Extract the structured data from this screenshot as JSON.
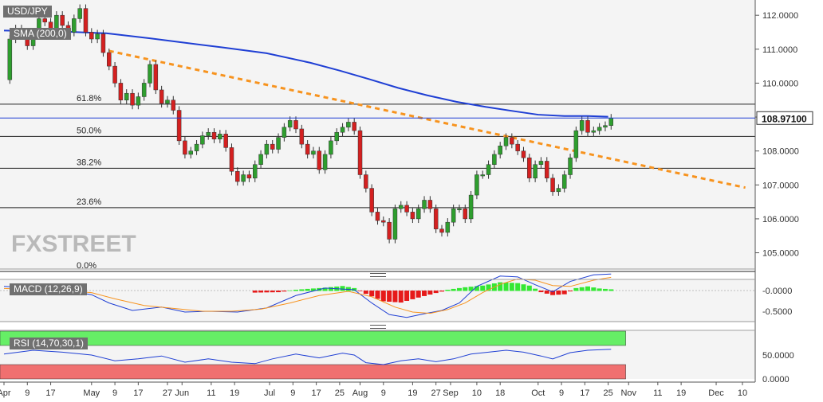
{
  "chart_data": {
    "type": "candlestick",
    "symbol": "USD/JPY",
    "indicators": {
      "sma_label": "SMA (200,0)",
      "macd_label": "MACD (12,26,9)",
      "rsi_label": "RSI (14,70,30,1)"
    },
    "current_price": "108.97100",
    "price_axis": {
      "ticks": [
        "112.0000",
        "111.0000",
        "110.0000",
        "109.0000",
        "108.0000",
        "107.0000",
        "106.0000",
        "105.0000"
      ],
      "tick_values": [
        112,
        111,
        110,
        109,
        108,
        107,
        106,
        105
      ],
      "ylim": [
        104.52,
        112.45
      ]
    },
    "macd_axis": {
      "ticks": [
        "-0.0000",
        "-0.5000"
      ],
      "tick_values": [
        0,
        -0.5
      ]
    },
    "rsi_axis": {
      "ticks": [
        "50.0000",
        "0.0000"
      ],
      "tick_values": [
        50,
        0
      ],
      "overbought": 70,
      "oversold": 30
    },
    "x_axis": {
      "labels": [
        {
          "t": "Apr",
          "d": 0
        },
        {
          "t": "9",
          "d": 8
        },
        {
          "t": "17",
          "d": 16
        },
        {
          "t": "May",
          "d": 30
        },
        {
          "t": "9",
          "d": 38
        },
        {
          "t": "17",
          "d": 46
        },
        {
          "t": "27",
          "d": 56
        },
        {
          "t": "Jun",
          "d": 61
        },
        {
          "t": "11",
          "d": 71
        },
        {
          "t": "19",
          "d": 79
        },
        {
          "t": "Jul",
          "d": 91
        },
        {
          "t": "9",
          "d": 99
        },
        {
          "t": "17",
          "d": 107
        },
        {
          "t": "25",
          "d": 115
        },
        {
          "t": "Aug",
          "d": 122
        },
        {
          "t": "9",
          "d": 130
        },
        {
          "t": "19",
          "d": 140
        },
        {
          "t": "27",
          "d": 148
        },
        {
          "t": "Sep",
          "d": 153
        },
        {
          "t": "10",
          "d": 162
        },
        {
          "t": "18",
          "d": 170
        },
        {
          "t": "Oct",
          "d": 183
        },
        {
          "t": "9",
          "d": 191
        },
        {
          "t": "17",
          "d": 199
        },
        {
          "t": "25",
          "d": 207
        },
        {
          "t": "Nov",
          "d": 214
        },
        {
          "t": "11",
          "d": 224
        },
        {
          "t": "19",
          "d": 232
        },
        {
          "t": "Dec",
          "d": 244
        },
        {
          "t": "10",
          "d": 253
        }
      ]
    },
    "fibonacci": [
      {
        "label": "61.8%",
        "value": 109.38
      },
      {
        "label": "50.0%",
        "value": 108.43
      },
      {
        "label": "38.2%",
        "value": 107.49
      },
      {
        "label": "23.6%",
        "value": 106.33
      },
      {
        "label": "0.0%",
        "value": 104.45
      }
    ],
    "trendline": {
      "start": {
        "d": 36,
        "value": 110.95
      },
      "end": {
        "d": 254,
        "value": 106.92
      }
    },
    "sma200": [
      [
        0,
        111.55
      ],
      [
        20,
        111.52
      ],
      [
        35,
        111.47
      ],
      [
        50,
        111.32
      ],
      [
        61,
        111.2
      ],
      [
        75,
        111.05
      ],
      [
        90,
        110.88
      ],
      [
        105,
        110.6
      ],
      [
        115,
        110.37
      ],
      [
        125,
        110.12
      ],
      [
        135,
        109.86
      ],
      [
        145,
        109.64
      ],
      [
        155,
        109.45
      ],
      [
        165,
        109.3
      ],
      [
        175,
        109.17
      ],
      [
        183,
        109.07
      ],
      [
        192,
        109.03
      ],
      [
        200,
        109.03
      ],
      [
        207,
        109.01
      ]
    ],
    "closes": [
      [
        0,
        110.1
      ],
      [
        2,
        111.3
      ],
      [
        4,
        111.6
      ],
      [
        6,
        111.4
      ],
      [
        8,
        111.1
      ],
      [
        10,
        111.5
      ],
      [
        12,
        111.9
      ],
      [
        14,
        111.8
      ],
      [
        16,
        111.6
      ],
      [
        18,
        112.0
      ],
      [
        20,
        111.7
      ],
      [
        22,
        111.5
      ],
      [
        24,
        111.9
      ],
      [
        26,
        112.2
      ],
      [
        28,
        111.5
      ],
      [
        30,
        111.3
      ],
      [
        32,
        111.45
      ],
      [
        34,
        110.9
      ],
      [
        36,
        110.5
      ],
      [
        38,
        110.0
      ],
      [
        40,
        109.5
      ],
      [
        42,
        109.7
      ],
      [
        44,
        109.35
      ],
      [
        46,
        109.6
      ],
      [
        48,
        110.0
      ],
      [
        50,
        110.55
      ],
      [
        52,
        109.8
      ],
      [
        54,
        109.4
      ],
      [
        56,
        109.5
      ],
      [
        58,
        109.2
      ],
      [
        60,
        108.3
      ],
      [
        62,
        107.9
      ],
      [
        64,
        108.0
      ],
      [
        66,
        108.2
      ],
      [
        68,
        108.45
      ],
      [
        70,
        108.55
      ],
      [
        72,
        108.35
      ],
      [
        74,
        108.5
      ],
      [
        76,
        108.1
      ],
      [
        78,
        107.4
      ],
      [
        80,
        107.1
      ],
      [
        82,
        107.3
      ],
      [
        84,
        107.2
      ],
      [
        86,
        107.6
      ],
      [
        88,
        107.9
      ],
      [
        90,
        108.2
      ],
      [
        92,
        108.05
      ],
      [
        94,
        108.4
      ],
      [
        96,
        108.7
      ],
      [
        98,
        108.9
      ],
      [
        100,
        108.65
      ],
      [
        102,
        108.2
      ],
      [
        104,
        107.9
      ],
      [
        106,
        108.0
      ],
      [
        108,
        107.45
      ],
      [
        110,
        107.9
      ],
      [
        112,
        108.3
      ],
      [
        114,
        108.55
      ],
      [
        116,
        108.7
      ],
      [
        118,
        108.85
      ],
      [
        120,
        108.6
      ],
      [
        122,
        107.3
      ],
      [
        124,
        106.9
      ],
      [
        126,
        106.2
      ],
      [
        128,
        105.95
      ],
      [
        130,
        105.9
      ],
      [
        132,
        105.4
      ],
      [
        134,
        106.3
      ],
      [
        136,
        106.4
      ],
      [
        138,
        106.2
      ],
      [
        140,
        106.0
      ],
      [
        142,
        106.3
      ],
      [
        144,
        106.55
      ],
      [
        146,
        106.3
      ],
      [
        148,
        105.7
      ],
      [
        150,
        105.6
      ],
      [
        152,
        105.9
      ],
      [
        154,
        106.3
      ],
      [
        156,
        106.3
      ],
      [
        158,
        106.0
      ],
      [
        160,
        106.7
      ],
      [
        162,
        107.3
      ],
      [
        164,
        107.3
      ],
      [
        166,
        107.6
      ],
      [
        168,
        107.9
      ],
      [
        170,
        108.15
      ],
      [
        172,
        108.4
      ],
      [
        174,
        108.2
      ],
      [
        176,
        108.0
      ],
      [
        178,
        107.8
      ],
      [
        180,
        107.2
      ],
      [
        182,
        107.6
      ],
      [
        184,
        107.7
      ],
      [
        186,
        107.2
      ],
      [
        188,
        106.8
      ],
      [
        190,
        106.9
      ],
      [
        192,
        107.3
      ],
      [
        194,
        107.8
      ],
      [
        196,
        108.6
      ],
      [
        198,
        108.9
      ],
      [
        200,
        108.55
      ],
      [
        202,
        108.6
      ],
      [
        204,
        108.7
      ],
      [
        206,
        108.75
      ],
      [
        208,
        108.97
      ]
    ],
    "macd_hist": [
      [
        86,
        -0.04
      ],
      [
        94,
        -0.03
      ],
      [
        100,
        0.02
      ],
      [
        110,
        0.07
      ],
      [
        116,
        0.11
      ],
      [
        120,
        0.06
      ],
      [
        124,
        -0.07
      ],
      [
        130,
        -0.25
      ],
      [
        136,
        -0.28
      ],
      [
        142,
        -0.16
      ],
      [
        148,
        -0.05
      ],
      [
        152,
        0.02
      ],
      [
        158,
        0.08
      ],
      [
        164,
        0.12
      ],
      [
        170,
        0.2
      ],
      [
        176,
        0.18
      ],
      [
        180,
        0.12
      ],
      [
        184,
        -0.03
      ],
      [
        188,
        -0.1
      ],
      [
        192,
        -0.08
      ],
      [
        196,
        0.06
      ],
      [
        200,
        0.1
      ],
      [
        204,
        0.05
      ],
      [
        208,
        0.03
      ]
    ],
    "macd_line": [
      [
        0,
        0.1
      ],
      [
        20,
        0.02
      ],
      [
        30,
        -0.1
      ],
      [
        36,
        -0.3
      ],
      [
        44,
        -0.48
      ],
      [
        54,
        -0.4
      ],
      [
        62,
        -0.52
      ],
      [
        70,
        -0.5
      ],
      [
        80,
        -0.52
      ],
      [
        90,
        -0.42
      ],
      [
        100,
        -0.12
      ],
      [
        110,
        0.06
      ],
      [
        120,
        0.02
      ],
      [
        126,
        -0.3
      ],
      [
        132,
        -0.58
      ],
      [
        138,
        -0.65
      ],
      [
        144,
        -0.56
      ],
      [
        150,
        -0.48
      ],
      [
        156,
        -0.3
      ],
      [
        162,
        0.1
      ],
      [
        170,
        0.35
      ],
      [
        176,
        0.33
      ],
      [
        182,
        0.14
      ],
      [
        188,
        -0.03
      ],
      [
        194,
        0.22
      ],
      [
        202,
        0.38
      ],
      [
        208,
        0.4
      ]
    ],
    "signal_line": [
      [
        0,
        0.05
      ],
      [
        20,
        0.0
      ],
      [
        30,
        -0.05
      ],
      [
        38,
        -0.2
      ],
      [
        48,
        -0.36
      ],
      [
        58,
        -0.43
      ],
      [
        68,
        -0.5
      ],
      [
        78,
        -0.5
      ],
      [
        88,
        -0.45
      ],
      [
        98,
        -0.3
      ],
      [
        108,
        -0.12
      ],
      [
        118,
        -0.02
      ],
      [
        126,
        -0.15
      ],
      [
        134,
        -0.4
      ],
      [
        140,
        -0.52
      ],
      [
        146,
        -0.55
      ],
      [
        152,
        -0.46
      ],
      [
        158,
        -0.3
      ],
      [
        164,
        -0.05
      ],
      [
        170,
        0.15
      ],
      [
        176,
        0.28
      ],
      [
        182,
        0.25
      ],
      [
        188,
        0.12
      ],
      [
        194,
        0.1
      ],
      [
        202,
        0.25
      ],
      [
        208,
        0.32
      ]
    ],
    "rsi_line": [
      [
        0,
        52
      ],
      [
        10,
        60
      ],
      [
        20,
        56
      ],
      [
        30,
        50
      ],
      [
        38,
        38
      ],
      [
        46,
        42
      ],
      [
        54,
        48
      ],
      [
        62,
        35
      ],
      [
        70,
        42
      ],
      [
        78,
        35
      ],
      [
        86,
        32
      ],
      [
        92,
        42
      ],
      [
        100,
        52
      ],
      [
        108,
        44
      ],
      [
        116,
        54
      ],
      [
        120,
        50
      ],
      [
        124,
        34
      ],
      [
        130,
        30
      ],
      [
        136,
        38
      ],
      [
        142,
        42
      ],
      [
        148,
        36
      ],
      [
        154,
        42
      ],
      [
        160,
        52
      ],
      [
        166,
        56
      ],
      [
        172,
        60
      ],
      [
        178,
        56
      ],
      [
        184,
        48
      ],
      [
        188,
        42
      ],
      [
        194,
        55
      ],
      [
        200,
        60
      ],
      [
        208,
        62
      ]
    ],
    "colors": {
      "up": "#2e9e2e",
      "down": "#d42020",
      "sma": "#1f3fd4",
      "trend": "#f7931e",
      "macd": "#1f3fd4",
      "signal": "#f7931e",
      "hist_up": "#33e833",
      "hist_down": "#e61a1a",
      "rsi_line": "#1f3fd4",
      "rsi_ob": "#66ee66",
      "rsi_os": "#f07070"
    }
  },
  "watermark": "FXSTREET"
}
